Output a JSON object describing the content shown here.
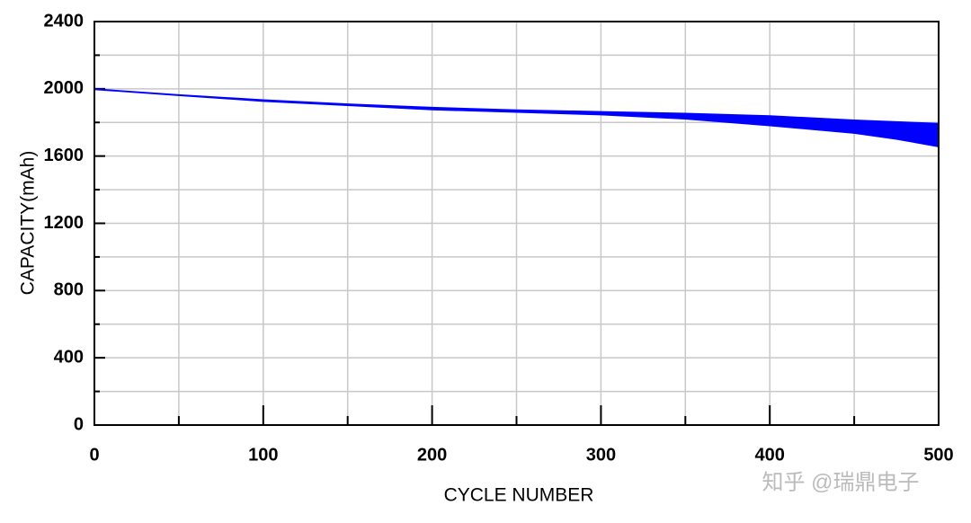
{
  "chart_data": {
    "type": "band",
    "x_label": "CYCLE NUMBER",
    "y_label": "CAPACITY(mAh)",
    "x": [
      0,
      50,
      100,
      150,
      200,
      250,
      300,
      350,
      400,
      450,
      475,
      500
    ],
    "upper": [
      2000,
      1965,
      1935,
      1910,
      1890,
      1875,
      1865,
      1855,
      1840,
      1815,
      1805,
      1795
    ],
    "lower": [
      1995,
      1960,
      1925,
      1900,
      1875,
      1860,
      1845,
      1820,
      1780,
      1735,
      1700,
      1655
    ],
    "color": "#0000ff",
    "xlim": [
      0,
      500
    ],
    "xticks": [
      0,
      100,
      200,
      300,
      400,
      500
    ],
    "x_minor_ticks": [
      50,
      150,
      250,
      350,
      450
    ],
    "ylim": [
      0,
      2400
    ],
    "yticks": [
      0,
      400,
      800,
      1200,
      1600,
      2000,
      2400
    ],
    "y_minor_ticks": [
      200,
      600,
      1000,
      1400,
      1800,
      2200
    ],
    "grid": true,
    "watermark": "知乎 @瑞鼎电子"
  }
}
